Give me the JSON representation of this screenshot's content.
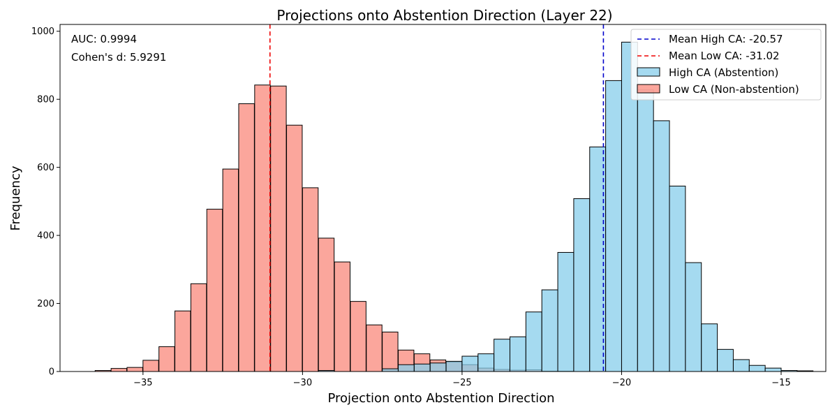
{
  "chart_data": {
    "type": "bar",
    "title": "Projections onto Abstention Direction (Layer 22)",
    "xlabel": "Projection onto Abstention Direction",
    "ylabel": "Frequency",
    "xlim": [
      -37.6,
      -13.6
    ],
    "ylim": [
      0,
      1020
    ],
    "xticks": [
      -35,
      -30,
      -25,
      -20,
      -15
    ],
    "xtick_labels": [
      "−35",
      "−30",
      "−25",
      "−20",
      "−15"
    ],
    "yticks": [
      0,
      200,
      400,
      600,
      800,
      1000
    ],
    "ytick_labels": [
      "0",
      "200",
      "400",
      "600",
      "800",
      "1000"
    ],
    "grid": false,
    "legend_position": "top-right",
    "annotations": [
      {
        "text": "AUC: 0.9994"
      },
      {
        "text": "Cohen's d: 5.9291"
      }
    ],
    "reference_lines": [
      {
        "label": "Mean High CA: -20.57",
        "x": -20.57,
        "color": "#0000cc",
        "style": "dashed"
      },
      {
        "label": "Mean Low CA: -31.02",
        "x": -31.02,
        "color": "#ee0000",
        "style": "dashed"
      }
    ],
    "series": [
      {
        "name": "High CA (Abstention)",
        "color": "#87ceeb",
        "bin_width": 0.5,
        "bins": [
          [
            -29.5,
            3
          ],
          [
            -27.5,
            8
          ],
          [
            -27.0,
            20
          ],
          [
            -26.5,
            22
          ],
          [
            -26.0,
            25
          ],
          [
            -25.5,
            30
          ],
          [
            -25.0,
            45
          ],
          [
            -24.5,
            52
          ],
          [
            -24.0,
            95
          ],
          [
            -23.5,
            102
          ],
          [
            -23.0,
            175
          ],
          [
            -22.5,
            240
          ],
          [
            -22.0,
            350
          ],
          [
            -21.5,
            508
          ],
          [
            -21.0,
            660
          ],
          [
            -20.5,
            855
          ],
          [
            -20.0,
            968
          ],
          [
            -19.5,
            828
          ],
          [
            -19.0,
            737
          ],
          [
            -18.5,
            545
          ],
          [
            -18.0,
            320
          ],
          [
            -17.5,
            140
          ],
          [
            -17.0,
            65
          ],
          [
            -16.5,
            35
          ],
          [
            -16.0,
            18
          ],
          [
            -15.5,
            10
          ],
          [
            -15.0,
            3
          ],
          [
            -14.5,
            2
          ]
        ]
      },
      {
        "name": "Low CA (Non-abstention)",
        "color": "#fa8072",
        "bin_width": 0.49,
        "bins": [
          [
            -36.5,
            3
          ],
          [
            -36.0,
            9
          ],
          [
            -35.5,
            12
          ],
          [
            -35.0,
            33
          ],
          [
            -34.5,
            73
          ],
          [
            -34.0,
            178
          ],
          [
            -33.5,
            258
          ],
          [
            -33.0,
            477
          ],
          [
            -32.5,
            595
          ],
          [
            -32.0,
            787
          ],
          [
            -31.5,
            842
          ],
          [
            -31.0,
            839
          ],
          [
            -30.5,
            724
          ],
          [
            -30.0,
            540
          ],
          [
            -29.5,
            392
          ],
          [
            -29.0,
            322
          ],
          [
            -28.5,
            206
          ],
          [
            -28.0,
            137
          ],
          [
            -27.5,
            116
          ],
          [
            -27.0,
            63
          ],
          [
            -26.5,
            52
          ],
          [
            -26.0,
            34
          ],
          [
            -25.5,
            28
          ],
          [
            -25.0,
            20
          ],
          [
            -24.5,
            10
          ],
          [
            -24.0,
            6
          ],
          [
            -23.5,
            4
          ],
          [
            -23.0,
            5
          ],
          [
            -22.5,
            1
          ],
          [
            -22.0,
            1
          ]
        ]
      }
    ]
  }
}
